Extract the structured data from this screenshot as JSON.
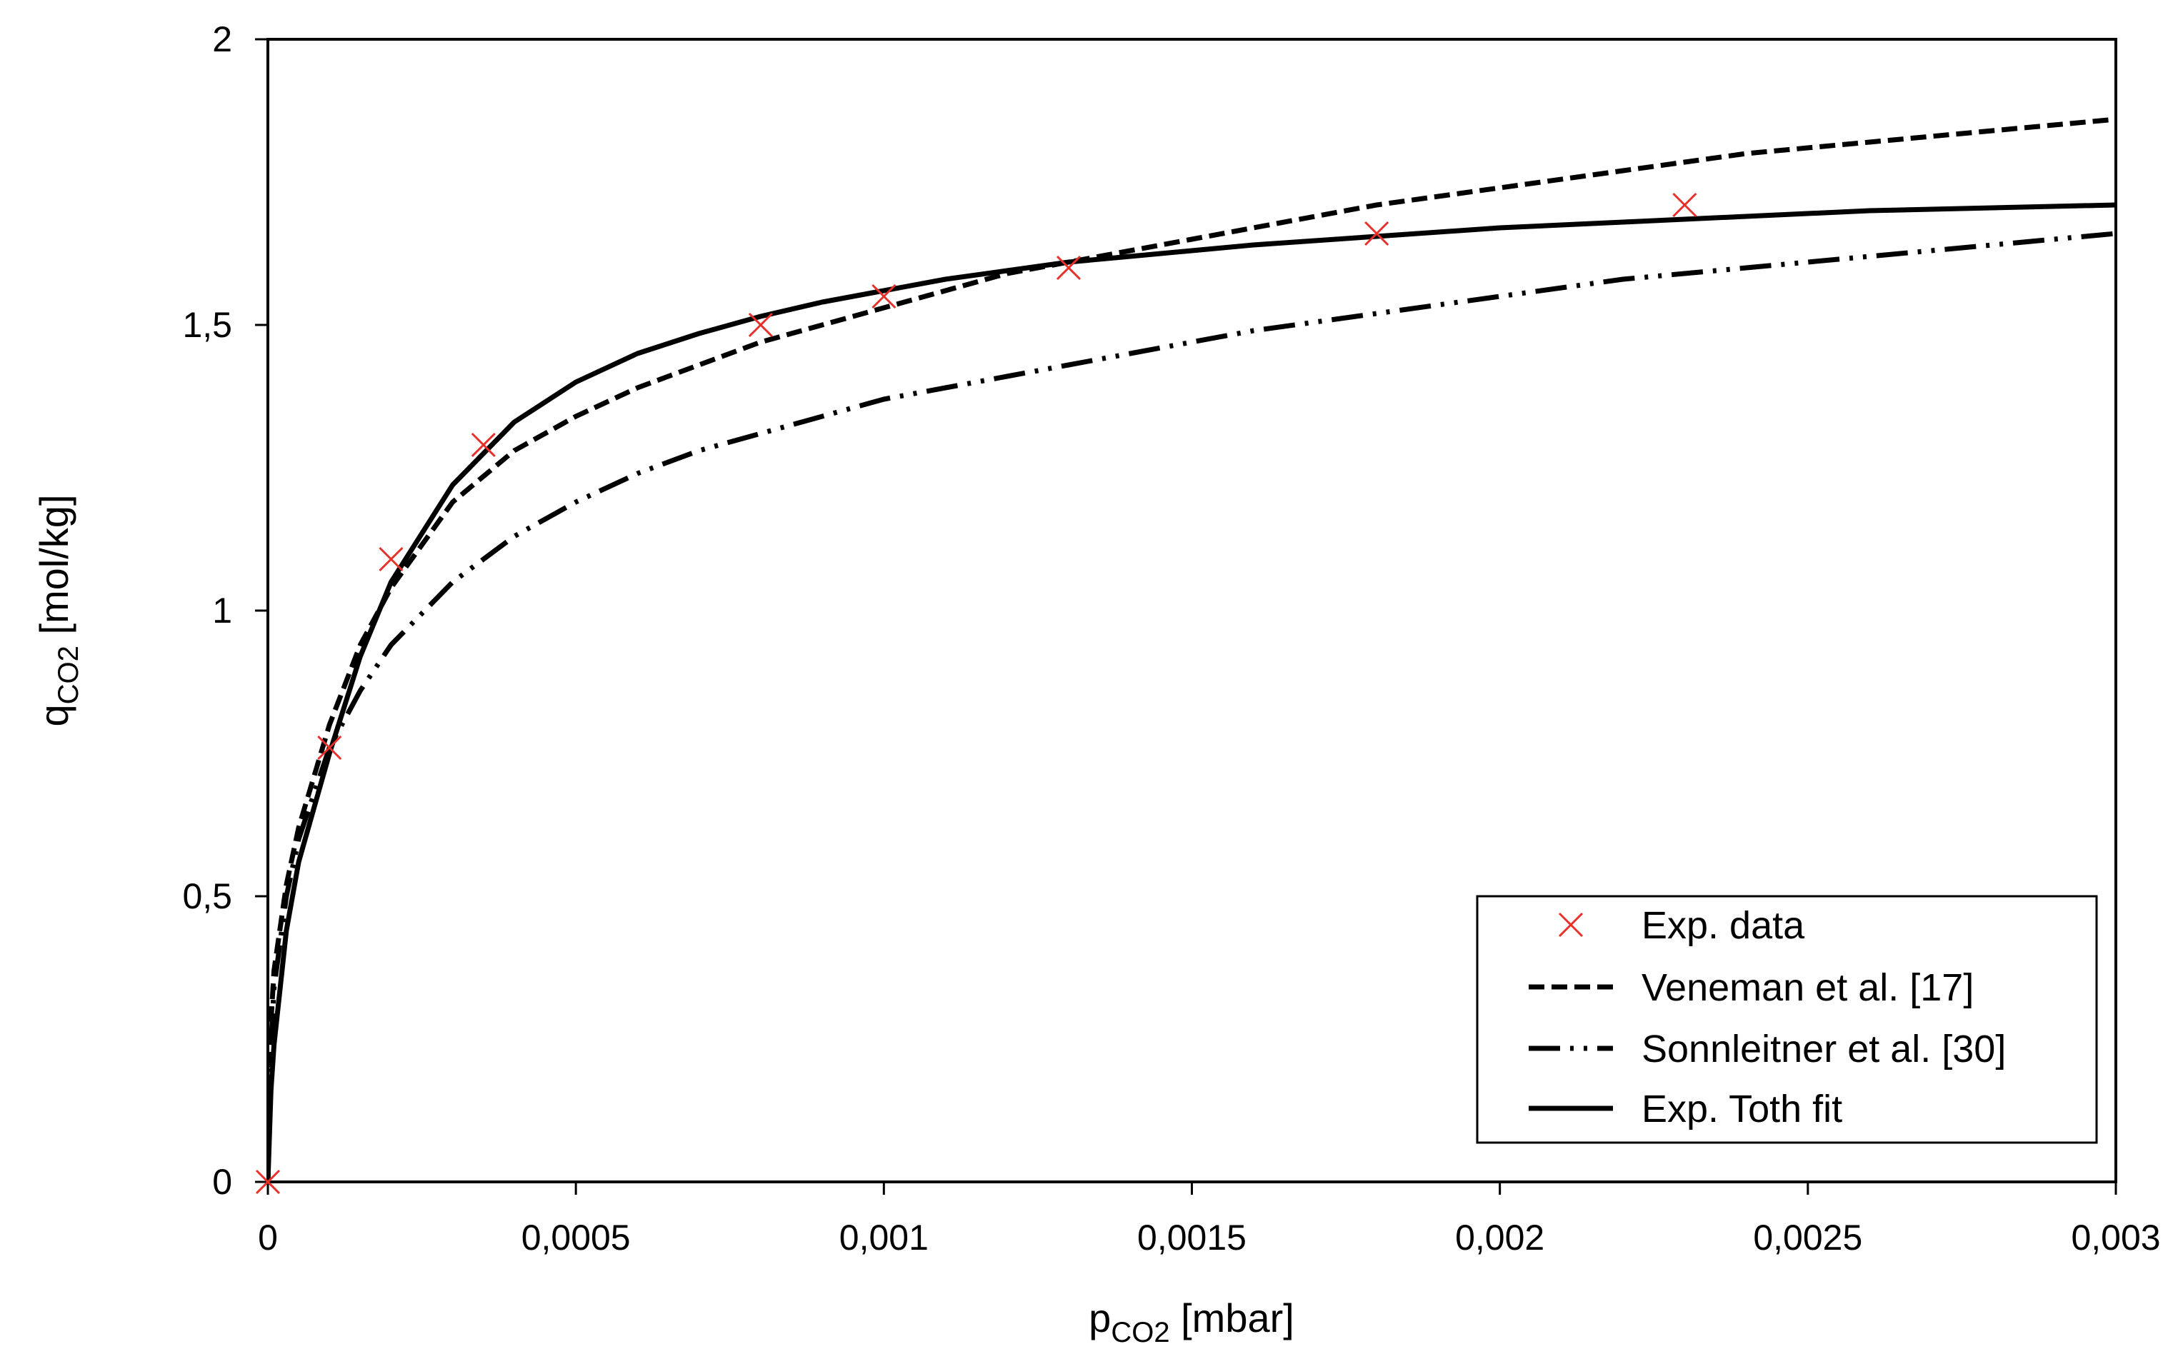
{
  "chart_data": {
    "type": "line",
    "title": "",
    "xlabel": {
      "main": "p",
      "sub": "CO2",
      "unit": " [mbar]"
    },
    "ylabel": {
      "main": "q",
      "sub": "CO2",
      "unit": " [mol/kg]"
    },
    "xlim": [
      0,
      0.003
    ],
    "ylim": [
      0,
      2
    ],
    "xticks": [
      0,
      0.0005,
      0.001,
      0.0015,
      0.002,
      0.0025,
      0.003
    ],
    "xtick_labels": [
      "0",
      "0,0005",
      "0,001",
      "0,0015",
      "0,002",
      "0,0025",
      "0,003"
    ],
    "yticks": [
      0,
      0.5,
      1,
      1.5,
      2
    ],
    "ytick_labels": [
      "0",
      "0,5",
      "1",
      "1,5",
      "2"
    ],
    "grid": false,
    "legend_position": "bottom-right",
    "series": [
      {
        "name": "Exp. data",
        "kind": "scatter",
        "marker": "x",
        "color": "#e8302a",
        "x": [
          0,
          0.0001,
          0.0002,
          0.00035,
          0.0008,
          0.001,
          0.0013,
          0.0018,
          0.0023
        ],
        "y": [
          0,
          0.76,
          1.09,
          1.29,
          1.5,
          1.55,
          1.6,
          1.66,
          1.71
        ]
      },
      {
        "name": "Veneman et al. [17]",
        "kind": "line",
        "style": "dash",
        "color": "#000000",
        "x": [
          0,
          5e-06,
          1e-05,
          3e-05,
          5e-05,
          0.0001,
          0.00015,
          0.0002,
          0.0003,
          0.0004,
          0.0005,
          0.0006,
          0.0007,
          0.0008,
          0.0009,
          0.001,
          0.0011,
          0.0012,
          0.0013,
          0.0014,
          0.0015,
          0.0016,
          0.0018,
          0.002,
          0.0022,
          0.0024,
          0.0026,
          0.0028,
          0.003
        ],
        "y": [
          0,
          0.28,
          0.37,
          0.52,
          0.62,
          0.8,
          0.94,
          1.04,
          1.19,
          1.28,
          1.34,
          1.39,
          1.43,
          1.47,
          1.5,
          1.53,
          1.56,
          1.59,
          1.61,
          1.63,
          1.65,
          1.67,
          1.71,
          1.74,
          1.77,
          1.8,
          1.82,
          1.84,
          1.86
        ]
      },
      {
        "name": "Sonnleitner et al. [30]",
        "kind": "line",
        "style": "dash-dot-dot",
        "color": "#000000",
        "x": [
          0,
          5e-06,
          1e-05,
          3e-05,
          5e-05,
          0.0001,
          0.00015,
          0.0002,
          0.0003,
          0.0004,
          0.0005,
          0.0006,
          0.0007,
          0.0008,
          0.0009,
          0.001,
          0.0011,
          0.0012,
          0.0013,
          0.0014,
          0.0015,
          0.0016,
          0.0018,
          0.002,
          0.0022,
          0.0024,
          0.0026,
          0.0028,
          0.003
        ],
        "y": [
          0,
          0.24,
          0.34,
          0.5,
          0.6,
          0.76,
          0.86,
          0.94,
          1.05,
          1.13,
          1.19,
          1.24,
          1.28,
          1.31,
          1.34,
          1.37,
          1.39,
          1.41,
          1.43,
          1.45,
          1.47,
          1.49,
          1.52,
          1.55,
          1.58,
          1.6,
          1.62,
          1.64,
          1.66
        ]
      },
      {
        "name": "Exp. Toth fit",
        "kind": "line",
        "style": "solid",
        "color": "#000000",
        "x": [
          0,
          5e-06,
          1e-05,
          3e-05,
          5e-05,
          0.0001,
          0.00015,
          0.0002,
          0.0003,
          0.0004,
          0.0005,
          0.0006,
          0.0007,
          0.0008,
          0.0009,
          0.001,
          0.0011,
          0.0012,
          0.0013,
          0.0014,
          0.0015,
          0.0016,
          0.0018,
          0.002,
          0.0022,
          0.0024,
          0.0026,
          0.0028,
          0.003
        ],
        "y": [
          0,
          0.16,
          0.24,
          0.44,
          0.56,
          0.75,
          0.92,
          1.05,
          1.22,
          1.33,
          1.4,
          1.45,
          1.485,
          1.515,
          1.54,
          1.56,
          1.58,
          1.595,
          1.61,
          1.62,
          1.63,
          1.64,
          1.655,
          1.67,
          1.68,
          1.69,
          1.7,
          1.705,
          1.71
        ]
      }
    ]
  }
}
